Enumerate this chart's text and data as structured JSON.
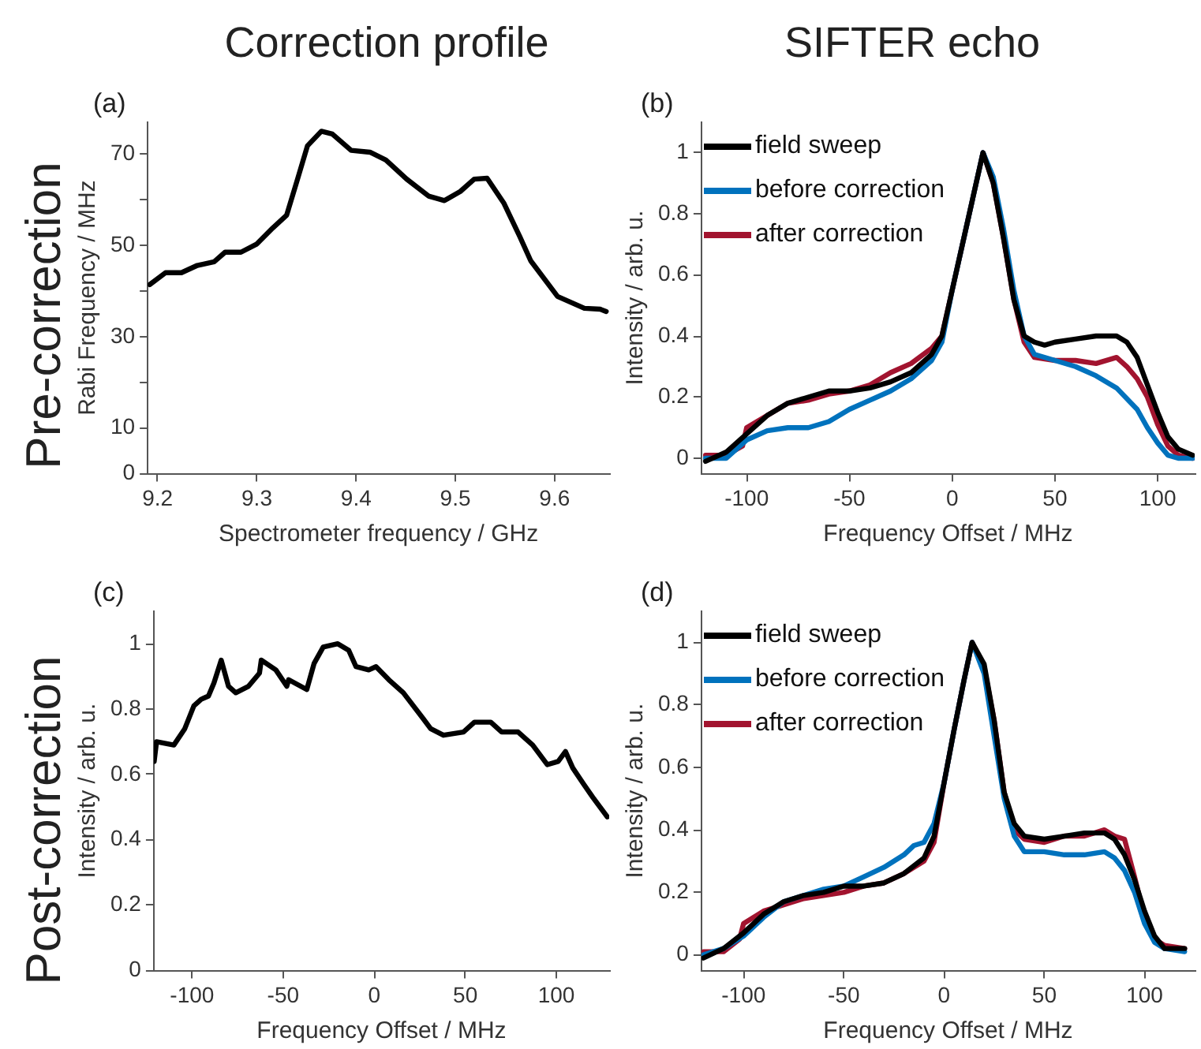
{
  "chart_data": [
    {
      "type": "line",
      "title": "Correction profile",
      "annotations": [
        "(a)",
        "Pre-correction"
      ],
      "xlabel": "Spectrometer frequency / GHz",
      "ylabel": "Rabi Frequency / MHz",
      "color": "#000000",
      "x": [
        9.192,
        9.208,
        9.224,
        9.24,
        9.257,
        9.268,
        9.284,
        9.3,
        9.316,
        9.33,
        9.341,
        9.351,
        9.365,
        9.376,
        9.395,
        9.414,
        9.43,
        9.451,
        9.473,
        9.489,
        9.505,
        9.519,
        9.532,
        9.549,
        9.565,
        9.576,
        9.603,
        9.63,
        9.646,
        9.652
      ],
      "values": [
        41.4,
        44,
        44,
        45.6,
        46.4,
        48.5,
        48.5,
        50.3,
        53.8,
        56.6,
        64.5,
        71.8,
        75,
        74.4,
        70.8,
        70.4,
        68.7,
        64.5,
        60.8,
        59.8,
        61.8,
        64.5,
        64.7,
        59.2,
        51.9,
        46.6,
        38.8,
        36.2,
        36,
        35.5
      ],
      "xlim": [
        9.19,
        9.655
      ],
      "ylim": [
        0,
        77
      ],
      "xticks": [
        9.2,
        9.3,
        9.4,
        9.5,
        9.6
      ],
      "yticks": [
        0,
        10,
        {
          "value": 20,
          "label": null
        },
        30,
        {
          "value": 40,
          "label": null
        },
        50,
        {
          "value": 60,
          "label": null
        },
        70
      ]
    },
    {
      "type": "line",
      "title": "SIFTER echo",
      "annotations": [
        "(b)"
      ],
      "xlabel": "Frequency Offset / MHz",
      "ylabel": "Intensity / arb. u.",
      "legend": "top left",
      "xlim": [
        -122,
        118
      ],
      "ylim": [
        -0.05,
        1.1
      ],
      "xticks": [
        -100,
        -50,
        0,
        50,
        100
      ],
      "yticks": [
        0,
        0.2,
        0.4,
        0.6,
        0.8,
        1
      ],
      "series": [
        {
          "name": "field sweep",
          "color": "#000000",
          "x": [
            -120,
            -110,
            -100,
            -90,
            -80,
            -70,
            -60,
            -50,
            -40,
            -30,
            -20,
            -10,
            -5,
            0,
            5,
            10,
            15,
            20,
            25,
            30,
            35,
            40,
            45,
            50,
            60,
            70,
            80,
            85,
            90,
            95,
            100,
            105,
            110,
            117
          ],
          "values": [
            -0.01,
            0.02,
            0.08,
            0.14,
            0.18,
            0.2,
            0.22,
            0.22,
            0.23,
            0.25,
            0.28,
            0.34,
            0.4,
            0.55,
            0.7,
            0.85,
            1.0,
            0.9,
            0.72,
            0.52,
            0.4,
            0.38,
            0.37,
            0.38,
            0.39,
            0.4,
            0.4,
            0.38,
            0.33,
            0.24,
            0.15,
            0.07,
            0.03,
            0.01
          ]
        },
        {
          "name": "before correction",
          "color": "#0072bd",
          "x": [
            -120,
            -110,
            -100,
            -90,
            -80,
            -70,
            -60,
            -50,
            -40,
            -30,
            -20,
            -10,
            -5,
            0,
            5,
            10,
            15,
            20,
            25,
            30,
            35,
            40,
            50,
            60,
            70,
            80,
            90,
            95,
            100,
            105,
            110,
            117
          ],
          "values": [
            0.0,
            0.0,
            0.06,
            0.09,
            0.1,
            0.1,
            0.12,
            0.16,
            0.19,
            0.22,
            0.26,
            0.32,
            0.38,
            0.55,
            0.7,
            0.85,
            1.0,
            0.92,
            0.75,
            0.55,
            0.4,
            0.34,
            0.32,
            0.3,
            0.27,
            0.23,
            0.16,
            0.1,
            0.05,
            0.01,
            0.0,
            0.0
          ]
        },
        {
          "name": "after correction",
          "color": "#a2142f",
          "x": [
            -120,
            -110,
            -102,
            -100,
            -90,
            -80,
            -70,
            -60,
            -50,
            -40,
            -30,
            -20,
            -10,
            -5,
            0,
            5,
            10,
            15,
            20,
            25,
            30,
            35,
            40,
            50,
            60,
            70,
            80,
            85,
            90,
            95,
            100,
            105,
            110,
            117
          ],
          "values": [
            0.01,
            0.01,
            0.04,
            0.1,
            0.14,
            0.18,
            0.19,
            0.21,
            0.22,
            0.24,
            0.28,
            0.31,
            0.36,
            0.4,
            0.55,
            0.7,
            0.85,
            1.0,
            0.9,
            0.72,
            0.52,
            0.38,
            0.33,
            0.32,
            0.32,
            0.31,
            0.33,
            0.3,
            0.26,
            0.2,
            0.11,
            0.04,
            0.01,
            0.0
          ]
        }
      ]
    },
    {
      "type": "line",
      "annotations": [
        "(c)",
        "Post-correction"
      ],
      "xlabel": "Frequency Offset / MHz",
      "ylabel": "Intensity / arb. u.",
      "color": "#000000",
      "x": [
        -120.8,
        -119.5,
        -110,
        -104,
        -99,
        -95,
        -91,
        -88,
        -84,
        -80,
        -76,
        -69,
        -63,
        -62,
        -54,
        -48,
        -47,
        -37,
        -33,
        -28,
        -20,
        -14,
        -10,
        -3,
        1,
        8,
        16,
        27,
        31,
        38,
        49,
        55,
        64,
        70,
        79,
        87,
        95,
        101,
        105,
        109,
        115,
        120,
        128
      ],
      "values": [
        0.64,
        0.7,
        0.69,
        0.74,
        0.81,
        0.83,
        0.84,
        0.88,
        0.95,
        0.87,
        0.85,
        0.87,
        0.91,
        0.95,
        0.92,
        0.87,
        0.89,
        0.86,
        0.94,
        0.99,
        1.0,
        0.98,
        0.93,
        0.92,
        0.93,
        0.89,
        0.85,
        0.77,
        0.74,
        0.72,
        0.73,
        0.76,
        0.76,
        0.73,
        0.73,
        0.69,
        0.63,
        0.64,
        0.67,
        0.62,
        0.57,
        0.53,
        0.47
      ],
      "xlim": [
        -121,
        129
      ],
      "ylim": [
        0,
        1.1
      ],
      "xticks": [
        -100,
        -50,
        0,
        50,
        100
      ],
      "yticks": [
        0,
        0.2,
        0.4,
        0.6,
        0.8,
        1
      ]
    },
    {
      "type": "line",
      "annotations": [
        "(d)"
      ],
      "xlabel": "Frequency Offset / MHz",
      "ylabel": "Intensity / arb. u.",
      "legend": "top left",
      "xlim": [
        -121,
        125
      ],
      "ylim": [
        -0.05,
        1.1
      ],
      "xticks": [
        -100,
        -50,
        0,
        50,
        100
      ],
      "yticks": [
        0,
        0.2,
        0.4,
        0.6,
        0.8,
        1
      ],
      "series": [
        {
          "name": "field sweep",
          "color": "#000000",
          "x": [
            -120,
            -110,
            -100,
            -90,
            -80,
            -70,
            -60,
            -50,
            -40,
            -30,
            -20,
            -10,
            -5,
            0,
            5,
            10,
            14,
            20,
            25,
            30,
            35,
            40,
            50,
            60,
            70,
            80,
            85,
            90,
            95,
            100,
            105,
            110,
            120
          ],
          "values": [
            -0.01,
            0.02,
            0.07,
            0.13,
            0.17,
            0.19,
            0.2,
            0.22,
            0.22,
            0.23,
            0.26,
            0.31,
            0.38,
            0.55,
            0.72,
            0.88,
            1.0,
            0.93,
            0.75,
            0.52,
            0.42,
            0.38,
            0.37,
            0.38,
            0.39,
            0.39,
            0.37,
            0.32,
            0.24,
            0.14,
            0.06,
            0.02,
            0.02
          ]
        },
        {
          "name": "before correction",
          "color": "#0072bd",
          "x": [
            -120,
            -110,
            -100,
            -90,
            -80,
            -70,
            -60,
            -50,
            -40,
            -30,
            -20,
            -15,
            -10,
            -5,
            0,
            5,
            10,
            14,
            20,
            25,
            30,
            35,
            40,
            50,
            60,
            70,
            80,
            85,
            90,
            95,
            100,
            105,
            110,
            120
          ],
          "values": [
            0.0,
            0.02,
            0.06,
            0.12,
            0.17,
            0.19,
            0.21,
            0.22,
            0.25,
            0.28,
            0.32,
            0.35,
            0.36,
            0.42,
            0.55,
            0.72,
            0.88,
            1.0,
            0.9,
            0.7,
            0.5,
            0.38,
            0.33,
            0.33,
            0.32,
            0.32,
            0.33,
            0.31,
            0.27,
            0.2,
            0.1,
            0.04,
            0.02,
            0.01
          ]
        },
        {
          "name": "after correction",
          "color": "#a2142f",
          "x": [
            -120,
            -110,
            -102,
            -100,
            -90,
            -80,
            -70,
            -60,
            -50,
            -40,
            -30,
            -20,
            -10,
            -5,
            0,
            5,
            10,
            14,
            20,
            25,
            30,
            35,
            40,
            50,
            60,
            70,
            80,
            85,
            90,
            95,
            100,
            105,
            110,
            120
          ],
          "values": [
            0.01,
            0.01,
            0.05,
            0.1,
            0.14,
            0.16,
            0.18,
            0.19,
            0.2,
            0.22,
            0.23,
            0.26,
            0.3,
            0.36,
            0.55,
            0.72,
            0.88,
            1.0,
            0.92,
            0.75,
            0.52,
            0.4,
            0.37,
            0.36,
            0.38,
            0.38,
            0.4,
            0.38,
            0.37,
            0.25,
            0.12,
            0.05,
            0.03,
            0.02
          ]
        }
      ]
    }
  ]
}
